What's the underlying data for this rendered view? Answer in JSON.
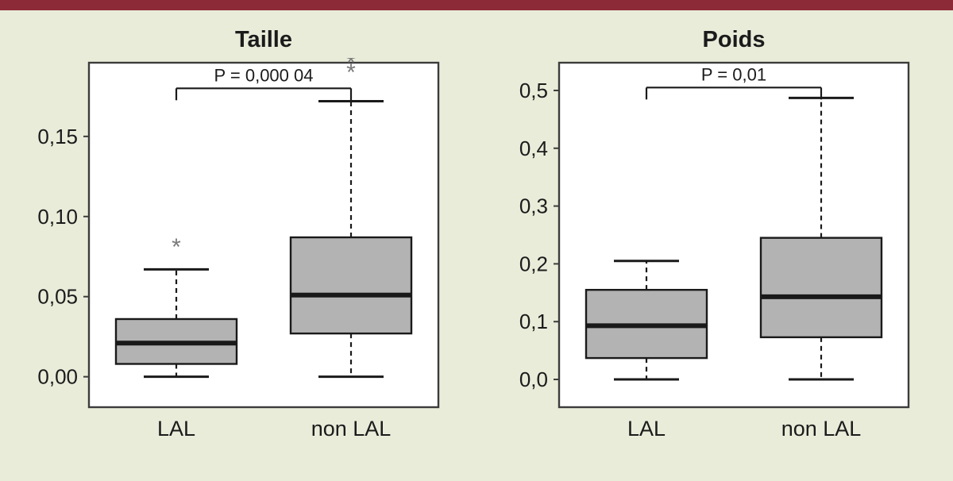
{
  "page": {
    "background_color": "#e9ecd9",
    "accent_bar_color": "#8d2a38"
  },
  "style": {
    "box_fill": "#b3b3b3",
    "line_color": "#1a1a1a",
    "frame_color": "#3c3c3c",
    "text_color": "#1b1b1b",
    "outlier_color": "#7a7a7a"
  },
  "chart_data": [
    {
      "type": "boxplot",
      "title": "Taille",
      "categories": [
        "LAL",
        "non LAL"
      ],
      "ylim": [
        -0.019,
        0.196
      ],
      "grid": false,
      "yticks": [
        {
          "value": 0.0,
          "label": "0,00"
        },
        {
          "value": 0.05,
          "label": "0,05"
        },
        {
          "value": 0.1,
          "label": "0,10"
        },
        {
          "value": 0.15,
          "label": "0,15"
        }
      ],
      "p_annotation": {
        "text": "P = 0,000 04",
        "y": 0.18
      },
      "series": [
        {
          "name": "LAL",
          "whisker_low": 0.0,
          "q1": 0.008,
          "median": 0.021,
          "q3": 0.036,
          "whisker_high": 0.067,
          "outliers": [
            0.081
          ]
        },
        {
          "name": "non LAL",
          "whisker_low": 0.0,
          "q1": 0.027,
          "median": 0.051,
          "q3": 0.087,
          "whisker_high": 0.172,
          "outliers": [
            0.19,
            0.196
          ]
        }
      ]
    },
    {
      "type": "boxplot",
      "title": "Poids",
      "categories": [
        "LAL",
        "non LAL"
      ],
      "ylim": [
        -0.048,
        0.548
      ],
      "grid": false,
      "yticks": [
        {
          "value": 0.0,
          "label": "0,0"
        },
        {
          "value": 0.1,
          "label": "0,1"
        },
        {
          "value": 0.2,
          "label": "0,2"
        },
        {
          "value": 0.3,
          "label": "0,3"
        },
        {
          "value": 0.4,
          "label": "0,4"
        },
        {
          "value": 0.5,
          "label": "0,5"
        }
      ],
      "p_annotation": {
        "text": "P = 0,01",
        "y": 0.505
      },
      "series": [
        {
          "name": "LAL",
          "whisker_low": 0.0,
          "q1": 0.037,
          "median": 0.093,
          "q3": 0.155,
          "whisker_high": 0.205,
          "outliers": []
        },
        {
          "name": "non LAL",
          "whisker_low": 0.0,
          "q1": 0.073,
          "median": 0.143,
          "q3": 0.245,
          "whisker_high": 0.487,
          "outliers": []
        }
      ]
    }
  ]
}
